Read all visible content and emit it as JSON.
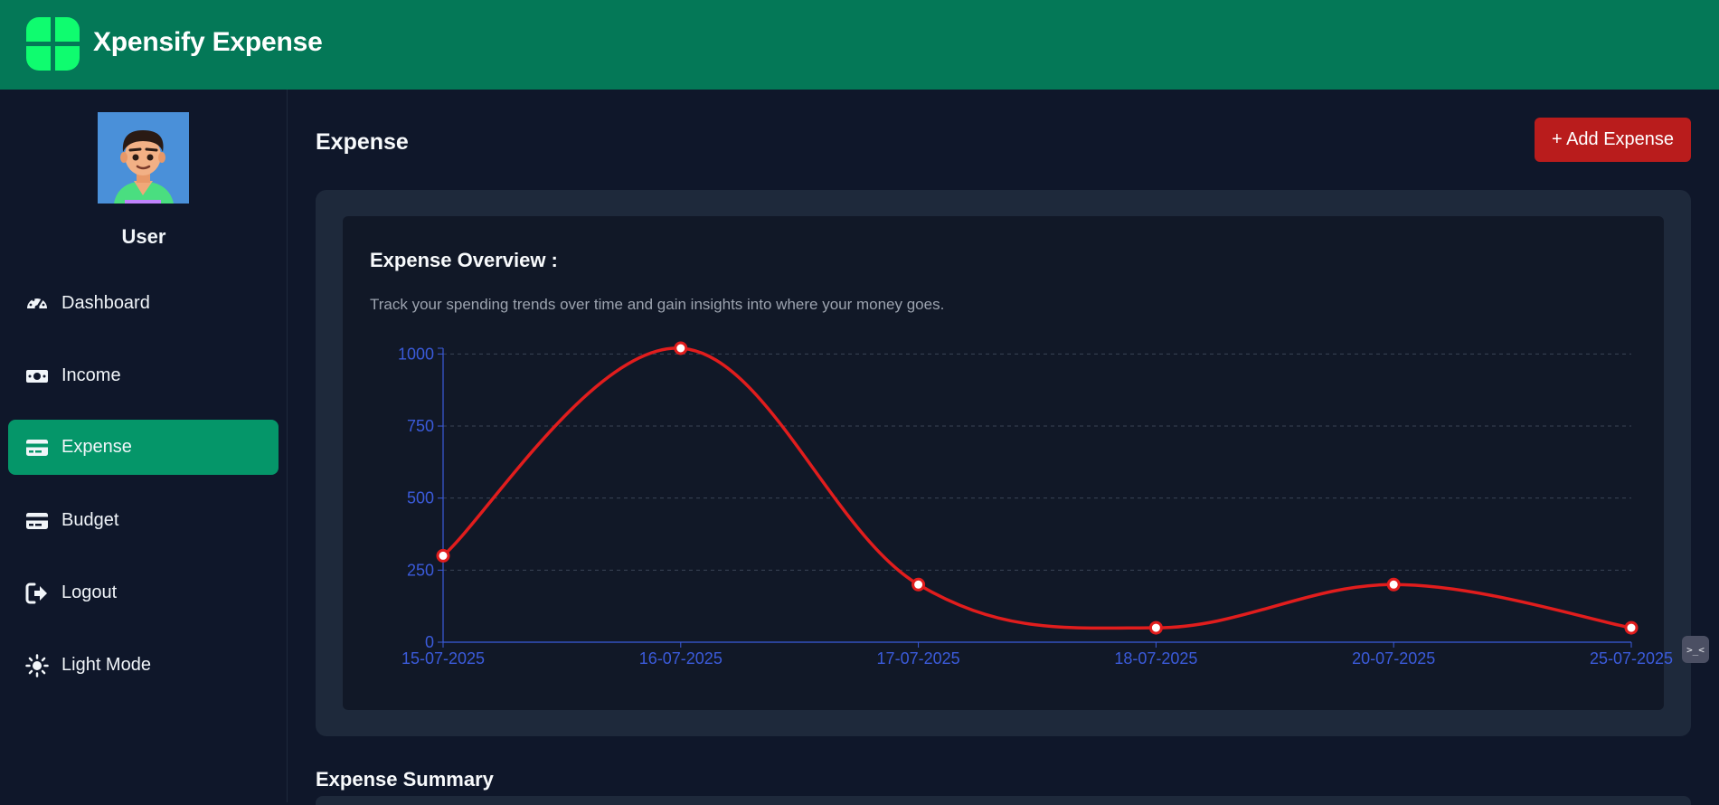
{
  "app": {
    "title": "Xpensify Expense",
    "brand_color": "#047857",
    "logo_color": "#0ffc6f"
  },
  "sidebar": {
    "username": "User",
    "items": [
      {
        "label": "Dashboard",
        "icon": "speedometer-icon",
        "active": false
      },
      {
        "label": "Income",
        "icon": "money-bill-icon",
        "active": false
      },
      {
        "label": "Expense",
        "icon": "credit-card-icon",
        "active": true
      },
      {
        "label": "Budget",
        "icon": "credit-card-icon",
        "active": false
      },
      {
        "label": "Logout",
        "icon": "logout-icon",
        "active": false
      },
      {
        "label": "Light Mode",
        "icon": "sun-icon",
        "active": false
      }
    ],
    "active_color": "#059669"
  },
  "main": {
    "page_title": "Expense",
    "add_button_label": "+ Add Expense",
    "add_button_color": "#b91c1c",
    "overview": {
      "title": "Expense Overview :",
      "subtitle": "Track your spending trends over time and gain insights into where your money goes."
    },
    "summary_title": "Expense Summary"
  },
  "chart_data": {
    "type": "line",
    "x": [
      "15-07-2025",
      "16-07-2025",
      "17-07-2025",
      "18-07-2025",
      "20-07-2025",
      "25-07-2025"
    ],
    "series": [
      {
        "values": [
          300,
          1020,
          200,
          50,
          200,
          50
        ],
        "color": "#e11d1d"
      }
    ],
    "yticks": [
      0,
      250,
      500,
      750,
      1000
    ],
    "ylim": [
      0,
      1020
    ],
    "axis_color": "#3b5bdb",
    "grid": true,
    "curve": "smooth"
  }
}
